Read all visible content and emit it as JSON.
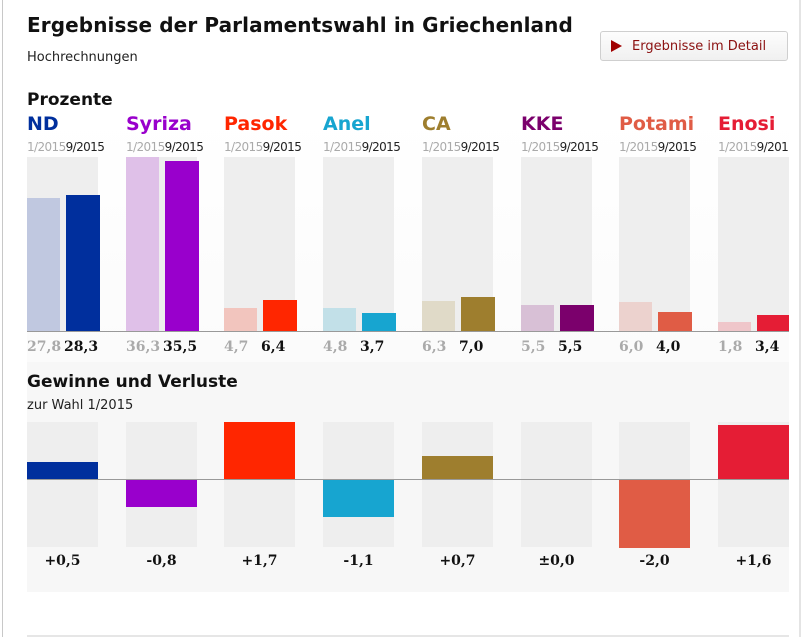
{
  "header": {
    "title": "Ergebnisse der Parlamentswahl in Griechenland",
    "subtitle": "Hochrechnungen",
    "detail_button_label": "Ergebnisse im Detail",
    "detail_button_icon": "play-triangle-icon",
    "detail_button_color": "#a00000"
  },
  "chart_data": [
    {
      "type": "bar",
      "title": "Prozente",
      "unit": "%",
      "series_labels": [
        "1/2015",
        "9/2015"
      ],
      "categories": [
        "ND",
        "Syriza",
        "Pasok",
        "Anel",
        "CA",
        "KKE",
        "Potami",
        "Enosi"
      ],
      "series": [
        {
          "name": "1/2015",
          "values": [
            27.8,
            36.3,
            4.7,
            4.8,
            6.3,
            5.5,
            6.0,
            1.8
          ],
          "labels": [
            "27,8",
            "36,3",
            "4,7",
            "4,8",
            "6,3",
            "5,5",
            "6,0",
            "1,8"
          ]
        },
        {
          "name": "9/2015",
          "values": [
            28.3,
            35.5,
            6.4,
            3.7,
            7.0,
            5.5,
            4.0,
            3.4
          ],
          "labels": [
            "28,3",
            "35,5",
            "6,4",
            "3,7",
            "7,0",
            "5,5",
            "4,0",
            "3,4"
          ]
        }
      ],
      "ylim": [
        0,
        36.3
      ],
      "colors": [
        "#002f9d",
        "#9900cc",
        "#ff2600",
        "#17a5d0",
        "#9e7e2e",
        "#7b006c",
        "#e05c45",
        "#e51d35"
      ],
      "light_colors": [
        "#c0c8e0",
        "#dfc0e8",
        "#f2c5be",
        "#c2e0e8",
        "#e0dac8",
        "#d8c0d6",
        "#ecd2ce",
        "#efc6ca"
      ]
    },
    {
      "type": "bar",
      "title": "Gewinne und Verluste",
      "subtitle": "zur Wahl 1/2015",
      "categories": [
        "ND",
        "Syriza",
        "Pasok",
        "Anel",
        "CA",
        "KKE",
        "Potami",
        "Enosi"
      ],
      "values": [
        0.5,
        -0.8,
        1.7,
        -1.1,
        0.7,
        0.0,
        -2.0,
        1.6
      ],
      "labels": [
        "+0,5",
        "-0,8",
        "+1,7",
        "-1,1",
        "+0,7",
        "±0,0",
        "-2,0",
        "+1,6"
      ],
      "ylim": [
        -2.0,
        1.7
      ]
    }
  ]
}
